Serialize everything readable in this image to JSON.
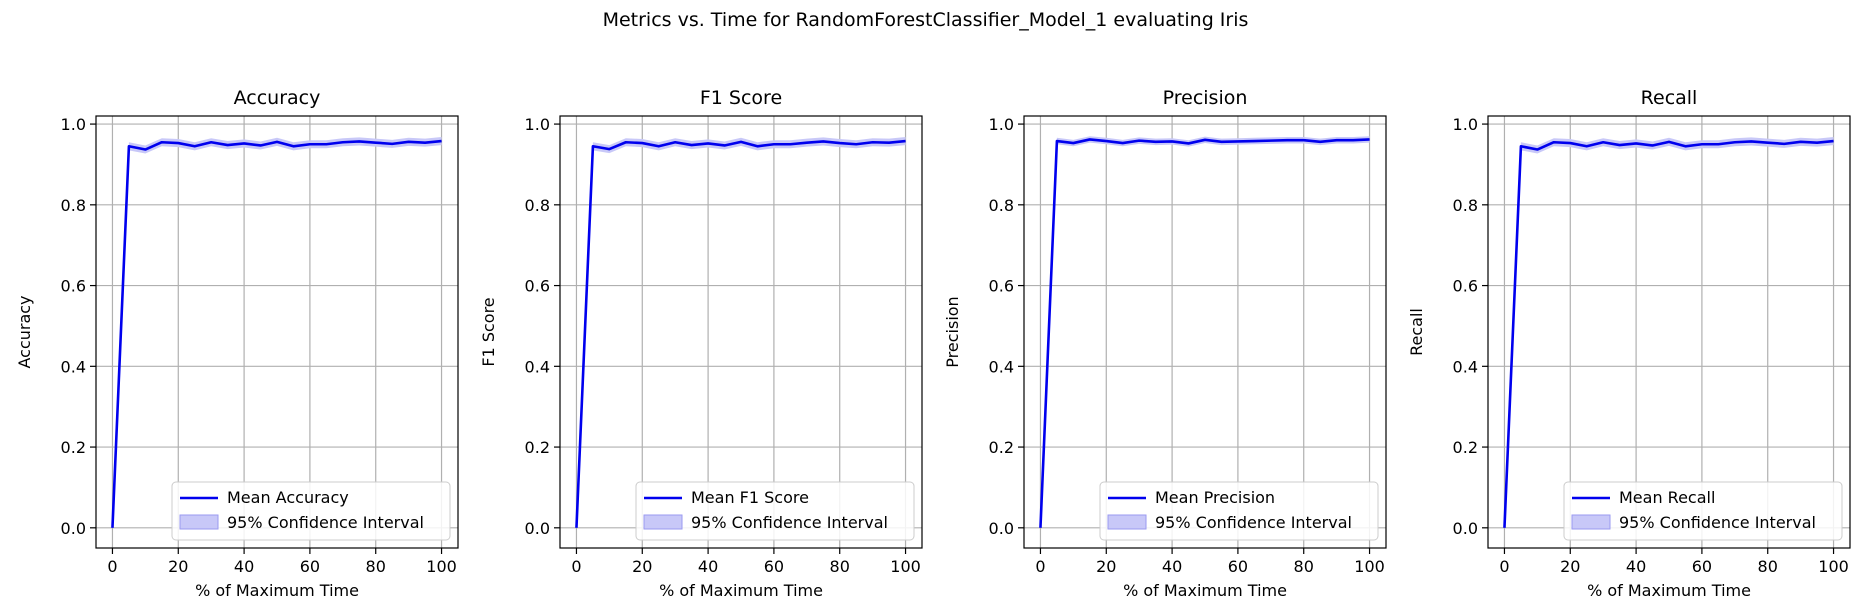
{
  "figure": {
    "suptitle": "Metrics vs. Time for RandomForestClassifier_Model_1 evaluating Iris"
  },
  "colors": {
    "line": "#0000ee",
    "band": "#c8c8f8",
    "band_edge": "#9a9af0",
    "grid": "#b0b0b0"
  },
  "chart_data": [
    {
      "type": "line",
      "title": "Accuracy",
      "xlabel": "% of Maximum Time",
      "ylabel": "Accuracy",
      "xlim": [
        -5,
        105
      ],
      "ylim": [
        -0.05,
        1.02
      ],
      "xticks": [
        0,
        20,
        40,
        60,
        80,
        100
      ],
      "yticks": [
        0.0,
        0.2,
        0.4,
        0.6,
        0.8,
        1.0
      ],
      "grid": true,
      "legend_position": "lower right",
      "x": [
        0,
        5,
        10,
        15,
        20,
        25,
        30,
        35,
        40,
        45,
        50,
        55,
        60,
        65,
        70,
        75,
        80,
        85,
        90,
        95,
        100
      ],
      "series": [
        {
          "name": "Mean Accuracy",
          "values": [
            0.0,
            0.945,
            0.937,
            0.955,
            0.953,
            0.945,
            0.955,
            0.948,
            0.952,
            0.947,
            0.956,
            0.945,
            0.95,
            0.95,
            0.955,
            0.957,
            0.954,
            0.951,
            0.956,
            0.954,
            0.958
          ]
        }
      ],
      "band": {
        "name": "95% Confidence Interval",
        "lower": [
          0.0,
          0.935,
          0.927,
          0.945,
          0.943,
          0.935,
          0.945,
          0.938,
          0.942,
          0.937,
          0.946,
          0.935,
          0.94,
          0.94,
          0.945,
          0.947,
          0.944,
          0.941,
          0.946,
          0.944,
          0.948
        ],
        "upper": [
          0.0,
          0.955,
          0.947,
          0.965,
          0.963,
          0.955,
          0.965,
          0.958,
          0.962,
          0.957,
          0.966,
          0.955,
          0.96,
          0.96,
          0.965,
          0.967,
          0.964,
          0.961,
          0.966,
          0.964,
          0.968
        ]
      },
      "xtick_labels": [
        "0",
        "20",
        "40",
        "60",
        "80",
        "100"
      ],
      "ytick_labels": [
        "0.0",
        "0.2",
        "0.4",
        "0.6",
        "0.8",
        "1.0"
      ]
    },
    {
      "type": "line",
      "title": "F1 Score",
      "xlabel": "% of Maximum Time",
      "ylabel": "F1 Score",
      "xlim": [
        -5,
        105
      ],
      "ylim": [
        -0.05,
        1.02
      ],
      "xticks": [
        0,
        20,
        40,
        60,
        80,
        100
      ],
      "yticks": [
        0.0,
        0.2,
        0.4,
        0.6,
        0.8,
        1.0
      ],
      "grid": true,
      "legend_position": "lower right",
      "x": [
        0,
        5,
        10,
        15,
        20,
        25,
        30,
        35,
        40,
        45,
        50,
        55,
        60,
        65,
        70,
        75,
        80,
        85,
        90,
        95,
        100
      ],
      "series": [
        {
          "name": "Mean F1 Score",
          "values": [
            0.0,
            0.945,
            0.938,
            0.955,
            0.953,
            0.945,
            0.955,
            0.948,
            0.952,
            0.947,
            0.956,
            0.945,
            0.95,
            0.95,
            0.954,
            0.957,
            0.953,
            0.95,
            0.955,
            0.954,
            0.958
          ]
        }
      ],
      "band": {
        "name": "95% Confidence Interval",
        "lower": [
          0.0,
          0.935,
          0.928,
          0.945,
          0.943,
          0.935,
          0.945,
          0.938,
          0.942,
          0.937,
          0.946,
          0.935,
          0.94,
          0.94,
          0.944,
          0.947,
          0.943,
          0.94,
          0.945,
          0.944,
          0.948
        ],
        "upper": [
          0.0,
          0.955,
          0.948,
          0.965,
          0.963,
          0.955,
          0.965,
          0.958,
          0.962,
          0.957,
          0.966,
          0.955,
          0.96,
          0.96,
          0.964,
          0.967,
          0.963,
          0.96,
          0.965,
          0.964,
          0.968
        ]
      },
      "xtick_labels": [
        "0",
        "20",
        "40",
        "60",
        "80",
        "100"
      ],
      "ytick_labels": [
        "0.0",
        "0.2",
        "0.4",
        "0.6",
        "0.8",
        "1.0"
      ]
    },
    {
      "type": "line",
      "title": "Precision",
      "xlabel": "% of Maximum Time",
      "ylabel": "Precision",
      "xlim": [
        -5,
        105
      ],
      "ylim": [
        -0.05,
        1.02
      ],
      "xticks": [
        0,
        20,
        40,
        60,
        80,
        100
      ],
      "yticks": [
        0.0,
        0.2,
        0.4,
        0.6,
        0.8,
        1.0
      ],
      "grid": true,
      "legend_position": "lower right",
      "x": [
        0,
        5,
        10,
        15,
        20,
        25,
        30,
        35,
        40,
        45,
        50,
        55,
        60,
        65,
        70,
        75,
        80,
        85,
        90,
        95,
        100
      ],
      "series": [
        {
          "name": "Mean Precision",
          "values": [
            0.0,
            0.958,
            0.953,
            0.962,
            0.958,
            0.953,
            0.959,
            0.956,
            0.957,
            0.952,
            0.961,
            0.956,
            0.957,
            0.958,
            0.959,
            0.96,
            0.96,
            0.956,
            0.96,
            0.96,
            0.962
          ]
        }
      ],
      "band": {
        "name": "95% Confidence Interval",
        "lower": [
          0.0,
          0.95,
          0.945,
          0.954,
          0.95,
          0.945,
          0.951,
          0.948,
          0.949,
          0.944,
          0.953,
          0.948,
          0.949,
          0.95,
          0.951,
          0.952,
          0.952,
          0.948,
          0.952,
          0.952,
          0.954
        ],
        "upper": [
          0.0,
          0.966,
          0.961,
          0.97,
          0.966,
          0.961,
          0.967,
          0.964,
          0.965,
          0.96,
          0.969,
          0.964,
          0.965,
          0.966,
          0.967,
          0.968,
          0.968,
          0.964,
          0.968,
          0.968,
          0.97
        ]
      },
      "xtick_labels": [
        "0",
        "20",
        "40",
        "60",
        "80",
        "100"
      ],
      "ytick_labels": [
        "0.0",
        "0.2",
        "0.4",
        "0.6",
        "0.8",
        "1.0"
      ]
    },
    {
      "type": "line",
      "title": "Recall",
      "xlabel": "% of Maximum Time",
      "ylabel": "Recall",
      "xlim": [
        -5,
        105
      ],
      "ylim": [
        -0.05,
        1.02
      ],
      "xticks": [
        0,
        20,
        40,
        60,
        80,
        100
      ],
      "yticks": [
        0.0,
        0.2,
        0.4,
        0.6,
        0.8,
        1.0
      ],
      "grid": true,
      "legend_position": "lower right",
      "x": [
        0,
        5,
        10,
        15,
        20,
        25,
        30,
        35,
        40,
        45,
        50,
        55,
        60,
        65,
        70,
        75,
        80,
        85,
        90,
        95,
        100
      ],
      "series": [
        {
          "name": "Mean Recall",
          "values": [
            0.0,
            0.945,
            0.937,
            0.955,
            0.953,
            0.945,
            0.955,
            0.948,
            0.952,
            0.947,
            0.956,
            0.945,
            0.95,
            0.95,
            0.955,
            0.957,
            0.954,
            0.951,
            0.956,
            0.954,
            0.958
          ]
        }
      ],
      "band": {
        "name": "95% Confidence Interval",
        "lower": [
          0.0,
          0.935,
          0.927,
          0.945,
          0.943,
          0.935,
          0.945,
          0.938,
          0.942,
          0.937,
          0.946,
          0.935,
          0.94,
          0.94,
          0.945,
          0.947,
          0.944,
          0.941,
          0.946,
          0.944,
          0.948
        ],
        "upper": [
          0.0,
          0.955,
          0.947,
          0.965,
          0.963,
          0.955,
          0.965,
          0.958,
          0.962,
          0.957,
          0.966,
          0.955,
          0.96,
          0.96,
          0.965,
          0.967,
          0.964,
          0.961,
          0.966,
          0.964,
          0.968
        ]
      },
      "xtick_labels": [
        "0",
        "20",
        "40",
        "60",
        "80",
        "100"
      ],
      "ytick_labels": [
        "0.0",
        "0.2",
        "0.4",
        "0.6",
        "0.8",
        "1.0"
      ]
    }
  ]
}
